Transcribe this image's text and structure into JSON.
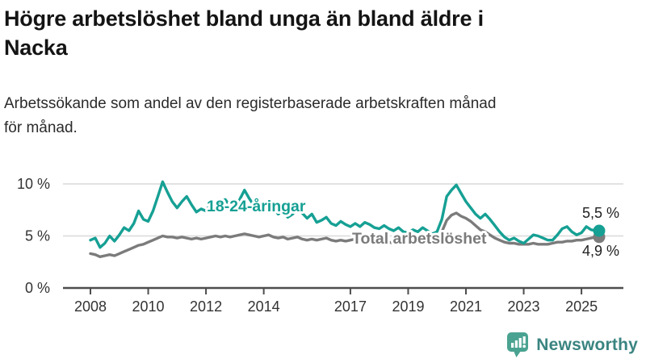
{
  "header": {
    "title_lines": [
      "Högre arbetslöshet bland unga än bland äldre i",
      "Nacka"
    ],
    "subtitle_lines": [
      "Arbetssökande som andel av den registerbaserade arbetskraften månad",
      "för månad."
    ]
  },
  "chart_data": {
    "type": "line",
    "title": "Högre arbetslöshet bland unga än bland äldre i Nacka",
    "subtitle": "Arbetssökande som andel av den registerbaserade arbetskraften månad för månad.",
    "xlabel": "",
    "ylabel": "",
    "ylim": [
      0,
      10.5
    ],
    "grid": "horizontal",
    "legend_position": "inline-labels",
    "x_start_year": 2008.0,
    "x_step_years": 0.166667,
    "yticks": [
      {
        "value": 0,
        "label": "0 %"
      },
      {
        "value": 5,
        "label": "5 %"
      },
      {
        "value": 10,
        "label": "10 %"
      }
    ],
    "xticks": [
      {
        "value": 2008,
        "label": "2008"
      },
      {
        "value": 2010,
        "label": "2010"
      },
      {
        "value": 2012,
        "label": "2012"
      },
      {
        "value": 2014,
        "label": "2014"
      },
      {
        "value": 2017,
        "label": "2017"
      },
      {
        "value": 2019,
        "label": "2019"
      },
      {
        "value": 2021,
        "label": "2021"
      },
      {
        "value": 2023,
        "label": "2023"
      },
      {
        "value": 2025,
        "label": "2025"
      }
    ],
    "series": [
      {
        "name": "18-24-åringar",
        "color": "#16a094",
        "end_label": "5,5 %",
        "values": [
          4.6,
          4.8,
          3.9,
          4.3,
          5.0,
          4.5,
          5.1,
          5.8,
          5.5,
          6.2,
          7.4,
          6.6,
          6.4,
          7.4,
          8.8,
          10.2,
          9.2,
          8.3,
          7.7,
          8.3,
          8.8,
          8.0,
          7.3,
          7.6,
          7.4,
          8.1,
          7.5,
          8.3,
          8.5,
          7.9,
          7.7,
          8.5,
          9.4,
          8.6,
          7.9,
          7.3,
          7.6,
          8.3,
          7.7,
          7.1,
          7.4,
          6.8,
          7.1,
          7.7,
          7.2,
          6.7,
          7.1,
          6.3,
          6.5,
          6.8,
          6.2,
          6.0,
          6.4,
          6.1,
          5.9,
          6.2,
          5.9,
          6.3,
          6.1,
          5.8,
          5.7,
          6.0,
          5.7,
          5.5,
          5.8,
          5.4,
          5.3,
          5.6,
          5.4,
          5.8,
          5.5,
          5.2,
          5.4,
          6.6,
          8.8,
          9.4,
          9.9,
          9.1,
          8.3,
          7.7,
          7.1,
          6.7,
          7.1,
          6.6,
          6.0,
          5.4,
          4.9,
          4.6,
          4.8,
          4.5,
          4.3,
          4.7,
          5.1,
          5.0,
          4.8,
          4.6,
          4.6,
          5.1,
          5.7,
          5.9,
          5.4,
          5.1,
          5.3,
          5.9,
          5.6,
          5.5
        ]
      },
      {
        "name": "Total arbetslöshet",
        "color": "#7b7b7b",
        "end_label": "4,9 %",
        "values": [
          3.3,
          3.2,
          3.0,
          3.1,
          3.2,
          3.1,
          3.3,
          3.5,
          3.7,
          3.9,
          4.1,
          4.2,
          4.4,
          4.6,
          4.8,
          5.0,
          4.9,
          4.9,
          4.8,
          4.9,
          4.8,
          4.7,
          4.8,
          4.7,
          4.8,
          4.9,
          5.0,
          4.9,
          5.0,
          4.9,
          5.0,
          5.1,
          5.2,
          5.1,
          5.0,
          4.9,
          5.0,
          5.1,
          4.9,
          4.8,
          4.9,
          4.7,
          4.8,
          4.9,
          4.7,
          4.6,
          4.7,
          4.6,
          4.7,
          4.8,
          4.6,
          4.5,
          4.6,
          4.5,
          4.6,
          4.7,
          4.5,
          4.4,
          4.5,
          4.4,
          4.5,
          4.6,
          4.4,
          4.3,
          4.4,
          4.3,
          4.4,
          4.5,
          4.4,
          4.5,
          4.4,
          4.4,
          4.5,
          5.4,
          6.5,
          7.0,
          7.2,
          6.9,
          6.7,
          6.4,
          6.0,
          5.6,
          5.4,
          5.1,
          4.8,
          4.6,
          4.4,
          4.3,
          4.3,
          4.2,
          4.2,
          4.2,
          4.3,
          4.2,
          4.2,
          4.2,
          4.3,
          4.4,
          4.4,
          4.5,
          4.5,
          4.6,
          4.6,
          4.7,
          4.8,
          4.9
        ]
      }
    ],
    "colors": {
      "grid": "#d9d9d9",
      "axis": "#4d4d4d",
      "tick_text": "#333333",
      "end_label_text": "#1f1f1f"
    }
  },
  "footer": {
    "brand": "Newsworthy",
    "logo_icon": "newsworthy-speech-bubble-chart-icon",
    "icon_color": "#4aa391",
    "text_color": "#3a8481"
  }
}
